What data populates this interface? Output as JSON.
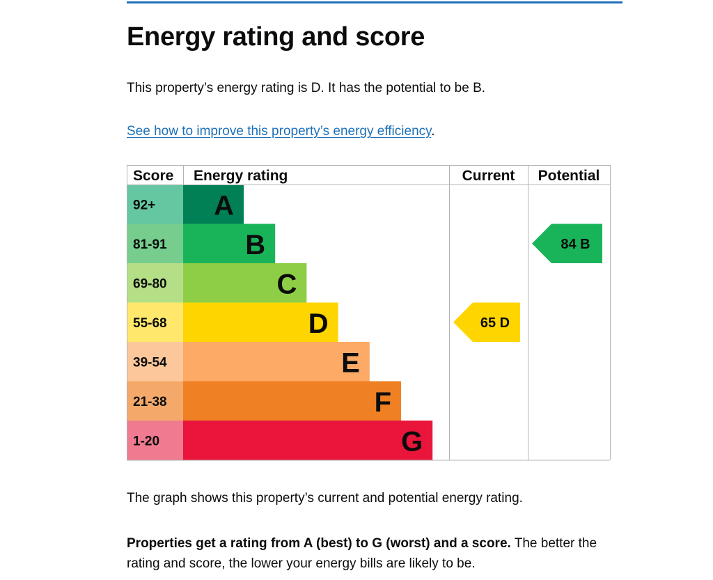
{
  "page": {
    "title": "Energy rating and score",
    "intro": "This property’s energy rating is D. It has the potential to be B.",
    "link_text": "See how to improve this property’s energy efficiency",
    "link_suffix": ".",
    "graph_text": "The graph shows this property’s current and potential energy rating.",
    "summary_bold": "Properties get a rating from A (best) to G (worst) and a score.",
    "summary_rest": " The better the rating and score, the lower your energy bills are likely to be."
  },
  "chart_data": {
    "type": "table",
    "headers": {
      "score": "Score",
      "rating": "Energy rating",
      "current": "Current",
      "potential": "Potential"
    },
    "bands": [
      {
        "letter": "A",
        "range": "92+",
        "color": "#008054",
        "light": "#64c7a1"
      },
      {
        "letter": "B",
        "range": "81-91",
        "color": "#19b459",
        "light": "#76cd8e"
      },
      {
        "letter": "C",
        "range": "69-80",
        "color": "#8dce46",
        "light": "#b5df87"
      },
      {
        "letter": "D",
        "range": "55-68",
        "color": "#ffd500",
        "light": "#ffe86b"
      },
      {
        "letter": "E",
        "range": "39-54",
        "color": "#fcaa65",
        "light": "#fdc79c"
      },
      {
        "letter": "F",
        "range": "21-38",
        "color": "#ef8023",
        "light": "#f4a96a"
      },
      {
        "letter": "G",
        "range": "1-20",
        "color": "#e9153b",
        "light": "#f07a8f"
      }
    ],
    "current": {
      "score": 65,
      "letter": "D",
      "label": "65  D",
      "color": "#ffd500"
    },
    "potential": {
      "score": 84,
      "letter": "B",
      "label": "84  B",
      "color": "#19b459"
    }
  }
}
